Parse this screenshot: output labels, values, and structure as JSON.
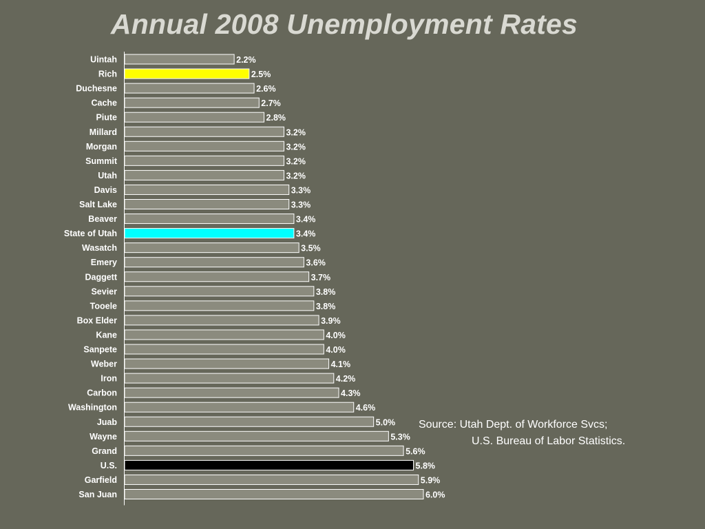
{
  "title": "Annual 2008 Unemployment Rates",
  "source": {
    "line1": "Source: Utah Dept. of Workforce Svcs;",
    "line2": "U.S. Bureau of Labor Statistics."
  },
  "colors": {
    "background": "#66675a",
    "bar_default": "#8b8b7e",
    "bar_highlight_rich": "#ffff00",
    "bar_highlight_state": "#00ffff",
    "bar_highlight_us": "#000000",
    "bar_outline": "#ffffff"
  },
  "chart_data": {
    "type": "bar",
    "orientation": "horizontal",
    "title": "Annual 2008 Unemployment Rates",
    "categories": [
      "Uintah",
      "Rich",
      "Duchesne",
      "Cache",
      "Piute",
      "Millard",
      "Morgan",
      "Summit",
      "Utah",
      "Davis",
      "Salt Lake",
      "Beaver",
      "State of Utah",
      "Wasatch",
      "Emery",
      "Daggett",
      "Sevier",
      "Tooele",
      "Box Elder",
      "Kane",
      "Sanpete",
      "Weber",
      "Iron",
      "Carbon",
      "Washington",
      "Juab",
      "Wayne",
      "Grand",
      "U.S.",
      "Garfield",
      "San Juan"
    ],
    "values": [
      2.2,
      2.5,
      2.6,
      2.7,
      2.8,
      3.2,
      3.2,
      3.2,
      3.2,
      3.3,
      3.3,
      3.4,
      3.4,
      3.5,
      3.6,
      3.7,
      3.8,
      3.8,
      3.9,
      4.0,
      4.0,
      4.1,
      4.2,
      4.3,
      4.6,
      5.0,
      5.3,
      5.6,
      5.8,
      5.9,
      6.0
    ],
    "value_labels": [
      "2.2%",
      "2.5%",
      "2.6%",
      "2.7%",
      "2.8%",
      "3.2%",
      "3.2%",
      "3.2%",
      "3.2%",
      "3.3%",
      "3.3%",
      "3.4%",
      "3.4%",
      "3.5%",
      "3.6%",
      "3.7%",
      "3.8%",
      "3.8%",
      "3.9%",
      "4.0%",
      "4.0%",
      "4.1%",
      "4.2%",
      "4.3%",
      "4.6%",
      "5.0%",
      "5.3%",
      "5.6%",
      "5.8%",
      "5.9%",
      "6.0%"
    ],
    "highlights": {
      "Rich": "#ffff00",
      "State of Utah": "#00ffff",
      "U.S.": "#000000"
    },
    "xlim": [
      0,
      6.0
    ],
    "grid": false,
    "legend": false
  }
}
